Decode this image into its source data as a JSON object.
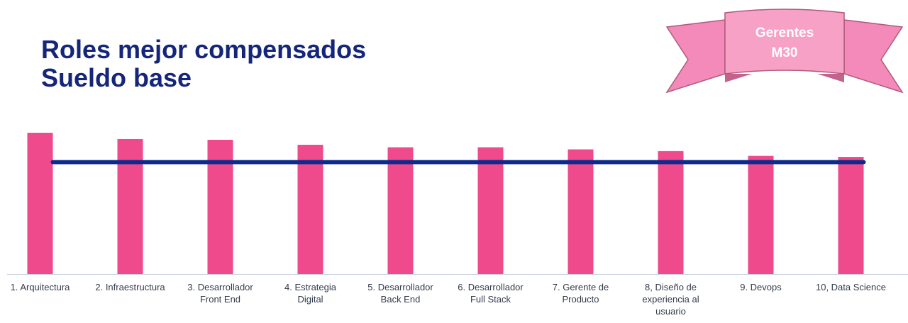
{
  "title": {
    "line1": "Roles mejor compensados",
    "line2": "Sueldo base"
  },
  "badge": {
    "line1": "Gerentes",
    "line2": "M30"
  },
  "colors": {
    "bar": "#ee4a8c",
    "line": "#0d2a8c",
    "title": "#15267a",
    "ribbon_front": "#f7a1c6",
    "ribbon_back": "#f38ab9",
    "ribbon_border": "#b05a7a"
  },
  "chart_data": {
    "type": "bar",
    "categories": [
      [
        "1. Arquitectura"
      ],
      [
        "2. Infraestructura"
      ],
      [
        "3. Desarrollador",
        "Front End"
      ],
      [
        "4. Estrategia",
        "Digital"
      ],
      [
        "5. Desarrollador",
        "Back End"
      ],
      [
        "6. Desarrollador",
        "Full Stack"
      ],
      [
        "7. Gerente de",
        "Producto"
      ],
      [
        "8, Diseño de",
        "experiencia al",
        "usuario"
      ],
      [
        "9. Devops"
      ],
      [
        "10, Data Science"
      ]
    ],
    "values": [
      100,
      95.5,
      95,
      91.5,
      89.7,
      89.7,
      88.2,
      87,
      83.6,
      82.9
    ],
    "reference_line": 79.2,
    "ylim": [
      0,
      100
    ],
    "grid": false,
    "legend": "none"
  }
}
